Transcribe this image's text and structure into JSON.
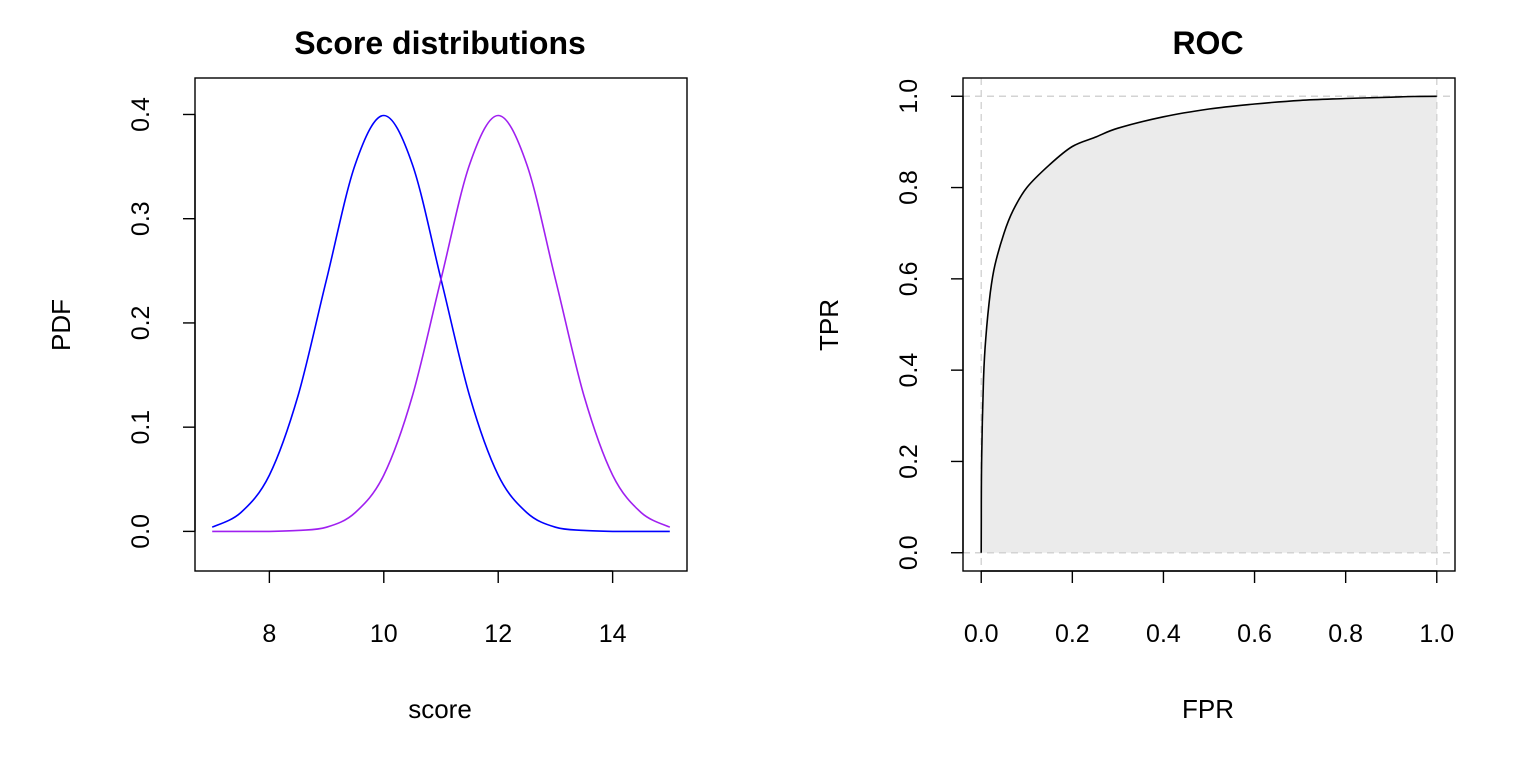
{
  "chart_data": [
    {
      "type": "line",
      "title": "Score distributions",
      "xlabel": "score",
      "ylabel": "PDF",
      "xlim": [
        6.7,
        15.3
      ],
      "ylim": [
        -0.038,
        0.435
      ],
      "x_ticks": [
        8,
        10,
        12,
        14
      ],
      "y_ticks": [
        0.0,
        0.1,
        0.2,
        0.3,
        0.4
      ],
      "x_tick_labels": [
        "8",
        "10",
        "12",
        "14"
      ],
      "y_tick_labels": [
        "0.0",
        "0.1",
        "0.2",
        "0.3",
        "0.4"
      ],
      "grid": false,
      "series": [
        {
          "color": "#0000ff",
          "x": [
            7,
            7.5,
            8,
            8.5,
            9,
            9.5,
            10,
            10.5,
            11,
            11.5,
            12,
            12.5,
            13,
            13.5,
            14,
            14.5,
            15
          ],
          "values": [
            0.004,
            0.018,
            0.054,
            0.13,
            0.242,
            0.352,
            0.399,
            0.352,
            0.242,
            0.13,
            0.054,
            0.018,
            0.004,
            0.001,
            0.0,
            0.0,
            0.0
          ]
        },
        {
          "color": "#a020f0",
          "x": [
            7,
            7.5,
            8,
            8.5,
            9,
            9.5,
            10,
            10.5,
            11,
            11.5,
            12,
            12.5,
            13,
            13.5,
            14,
            14.5,
            15
          ],
          "values": [
            0.0,
            0.0,
            0.0,
            0.001,
            0.004,
            0.018,
            0.054,
            0.13,
            0.242,
            0.352,
            0.399,
            0.352,
            0.242,
            0.13,
            0.054,
            0.018,
            0.004
          ]
        }
      ]
    },
    {
      "type": "area",
      "title": "ROC",
      "xlabel": "FPR",
      "ylabel": "TPR",
      "xlim": [
        -0.04,
        1.04
      ],
      "ylim": [
        -0.04,
        1.04
      ],
      "x_ticks": [
        0.0,
        0.2,
        0.4,
        0.6,
        0.8,
        1.0
      ],
      "y_ticks": [
        0.0,
        0.2,
        0.4,
        0.6,
        0.8,
        1.0
      ],
      "x_tick_labels": [
        "0.0",
        "0.2",
        "0.4",
        "0.6",
        "0.8",
        "1.0"
      ],
      "y_tick_labels": [
        "0.0",
        "0.2",
        "0.4",
        "0.6",
        "0.8",
        "1.0"
      ],
      "grid": "dashed lines at 0 and 1",
      "line_color": "#000000",
      "fill_color": "#ebebeb",
      "grid_color": "#d3d3d3",
      "x": [
        0.0,
        0.0001,
        0.001,
        0.005,
        0.01,
        0.02,
        0.03,
        0.05,
        0.07,
        0.1,
        0.15,
        0.2,
        0.25,
        0.3,
        0.4,
        0.5,
        0.6,
        0.7,
        0.8,
        0.9,
        0.95,
        1.0
      ],
      "values": [
        0.0,
        0.075,
        0.21,
        0.38,
        0.47,
        0.57,
        0.63,
        0.7,
        0.75,
        0.8,
        0.85,
        0.89,
        0.91,
        0.93,
        0.955,
        0.972,
        0.983,
        0.991,
        0.995,
        0.998,
        0.9995,
        1.0
      ]
    }
  ]
}
